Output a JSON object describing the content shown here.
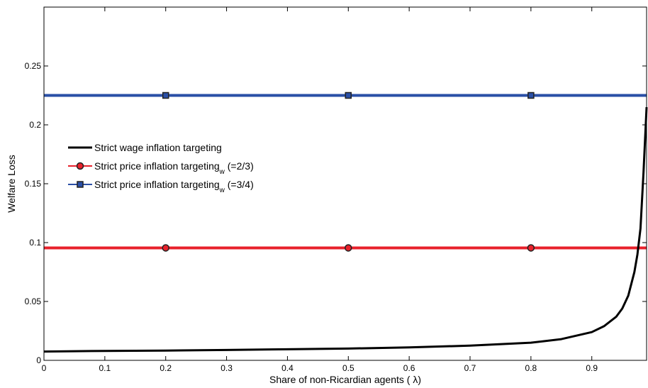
{
  "chart_data": {
    "type": "line",
    "xlabel": "Share of non-Ricardian agents (     λ)",
    "ylabel": "Welfare Loss",
    "xlim": [
      0,
      0.99
    ],
    "ylim": [
      0,
      0.3
    ],
    "xticks": [
      0,
      0.1,
      0.2,
      0.3,
      0.4,
      0.5,
      0.6,
      0.7,
      0.8,
      0.9
    ],
    "xtick_labels": [
      "0",
      "0.1",
      "0.2",
      "0.3",
      "0.4",
      "0.5",
      "0.6",
      "0.7",
      "0.8",
      "0.9"
    ],
    "yticks": [
      0,
      0.05,
      0.1,
      0.15,
      0.2,
      0.25
    ],
    "ytick_labels": [
      "0",
      "0.05",
      "0.1",
      "0.15",
      "0.2",
      "0.25"
    ],
    "grid": false,
    "legend_position": "left",
    "series": [
      {
        "name": "Strict wage inflation targeting",
        "color": "#000000",
        "marker": "none",
        "x": [
          0,
          0.1,
          0.2,
          0.3,
          0.4,
          0.5,
          0.6,
          0.7,
          0.8,
          0.85,
          0.9,
          0.92,
          0.94,
          0.95,
          0.96,
          0.97,
          0.975,
          0.98,
          0.985,
          0.99
        ],
        "y": [
          0.0075,
          0.008,
          0.0083,
          0.0088,
          0.0094,
          0.01,
          0.011,
          0.0125,
          0.015,
          0.018,
          0.024,
          0.029,
          0.037,
          0.044,
          0.055,
          0.075,
          0.09,
          0.112,
          0.16,
          0.215
        ]
      },
      {
        "name": "Strict price inflation targeting",
        "legend_suffix": "(=2/3)",
        "legend_sub": "w",
        "color": "#e8212b",
        "marker": "circle",
        "marker_x": [
          0.2,
          0.5,
          0.8
        ],
        "x": [
          0,
          0.99
        ],
        "y": [
          0.0955,
          0.0955
        ]
      },
      {
        "name": "Strict price inflation targeting",
        "legend_suffix": "(=3/4)",
        "legend_sub": "w",
        "color": "#2a4fa6",
        "marker": "square",
        "marker_x": [
          0.2,
          0.5,
          0.8
        ],
        "x": [
          0,
          0.99
        ],
        "y": [
          0.225,
          0.225
        ]
      }
    ]
  }
}
